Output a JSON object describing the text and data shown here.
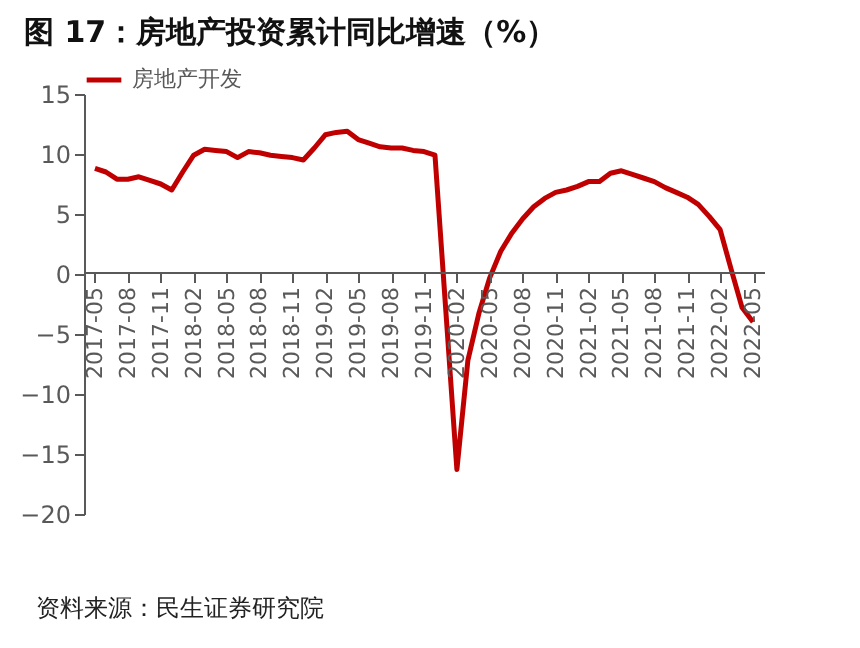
{
  "chart_data": {
    "type": "line",
    "title": "图 17：房地产投资累计同比增速（%）",
    "annotations": [
      "资料来源：民生证券研究院"
    ],
    "categories": [
      "2017-05",
      null,
      null,
      "2017-08",
      null,
      null,
      "2017-11",
      null,
      null,
      "2018-02",
      null,
      null,
      "2018-05",
      null,
      null,
      "2018-08",
      null,
      null,
      "2018-11",
      null,
      null,
      "2019-02",
      null,
      null,
      "2019-05",
      null,
      null,
      "2019-08",
      null,
      null,
      "2019-11",
      null,
      null,
      "2020-02",
      null,
      null,
      "2020-05",
      null,
      null,
      "2020-08",
      null,
      null,
      "2020-11",
      null,
      null,
      "2021-02",
      null,
      null,
      "2021-05",
      null,
      null,
      "2021-08",
      null,
      null,
      "2021-11",
      null,
      null,
      "2022-02",
      null,
      null,
      "2022-05"
    ],
    "series": [
      {
        "name": "房地产开发",
        "color": "#c00000",
        "values": [
          8.8,
          8.5,
          7.9,
          7.9,
          8.1,
          7.8,
          7.5,
          7.0,
          8.5,
          9.9,
          10.4,
          10.3,
          10.2,
          9.7,
          10.2,
          10.1,
          9.9,
          9.8,
          9.7,
          9.5,
          10.5,
          11.6,
          11.8,
          11.9,
          11.2,
          10.9,
          10.6,
          10.5,
          10.5,
          10.3,
          10.2,
          9.9,
          -3.2,
          -16.3,
          -7.2,
          -3.3,
          -0.3,
          1.9,
          3.4,
          4.6,
          5.6,
          6.3,
          6.8,
          7.0,
          7.3,
          7.7,
          7.7,
          8.4,
          8.6,
          8.3,
          8.0,
          7.7,
          7.2,
          6.8,
          6.4,
          5.8,
          4.8,
          3.7,
          0.4,
          -2.8,
          -4.0
        ]
      }
    ],
    "ylim": [
      -20,
      15
    ],
    "yticks": [
      -20,
      -15,
      -10,
      -5,
      0,
      5,
      10,
      15
    ],
    "grid": false,
    "legend": "top",
    "marker": "none",
    "line_style": "solid"
  }
}
